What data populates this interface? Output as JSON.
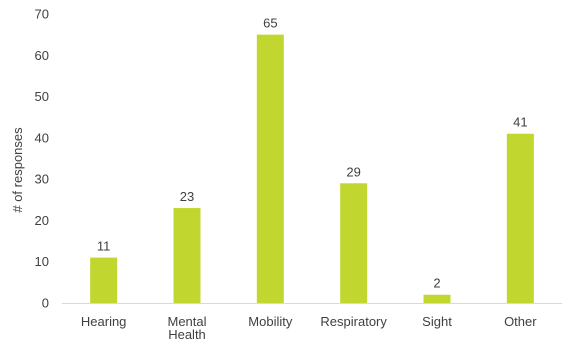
{
  "chart_data": {
    "type": "bar",
    "title": "",
    "xlabel": "",
    "ylabel": "# of responses",
    "ylim": [
      0,
      70
    ],
    "yticks": [
      0,
      10,
      20,
      30,
      40,
      50,
      60,
      70
    ],
    "categories": [
      [
        "Hearing"
      ],
      [
        "Mental",
        "Health"
      ],
      [
        "Mobility"
      ],
      [
        "Respiratory"
      ],
      [
        "Sight"
      ],
      [
        "Other"
      ]
    ],
    "values": [
      11,
      23,
      65,
      29,
      2,
      41
    ],
    "data_labels": [
      "11",
      "23",
      "65",
      "29",
      "2",
      "41"
    ],
    "grid": false,
    "legend": "none",
    "bar_color": "#c1d72f",
    "axis_color": "#d9d9d9",
    "text_color": "#404040"
  }
}
